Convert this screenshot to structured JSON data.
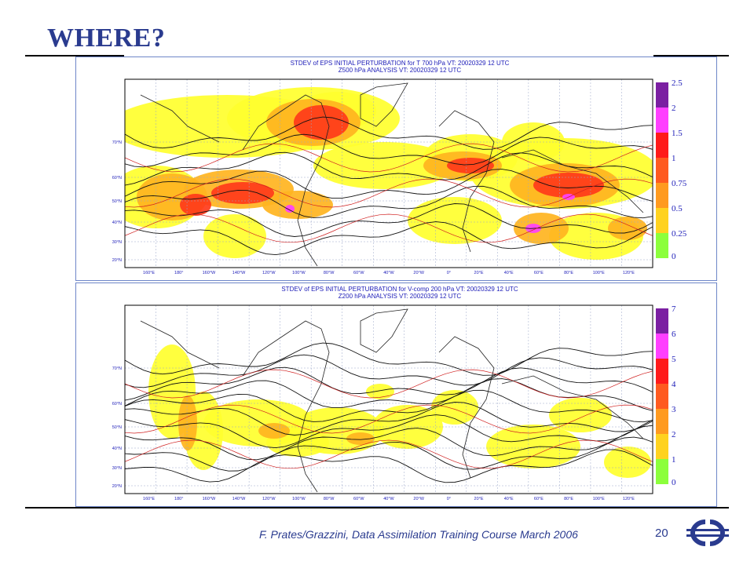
{
  "slide": {
    "title": "WHERE?",
    "footer": "F. Prates/Grazzini,  Data Assimilation Training Course March 2006",
    "page_number": "20",
    "logo_icon": "ecmwf-logo-icon",
    "accent_color": "#2a3b8f"
  },
  "panels": [
    {
      "title_line1": "STDEV of EPS INITIAL PERTURBATION for T 700 hPa VT: 20020329 12 UTC",
      "title_line2": "Z500 hPa ANALYSIS VT: 20020329 12 UTC",
      "legend_values": [
        "2.5",
        "2",
        "1.5",
        "1",
        "0.75",
        "0.5",
        "0.25",
        "0"
      ],
      "legend_colors": [
        "#7b1fa2",
        "#ff40ff",
        "#ff1a1a",
        "#ff5a1f",
        "#ff9a1f",
        "#ffd21f",
        "#ffff2e",
        "#8cff3c"
      ]
    },
    {
      "title_line1": "STDEV of EPS INITIAL PERTURBATION for V-comp 200 hPa VT: 20020329 12 UTC",
      "title_line2": "Z200 hPa ANALYSIS VT: 20020329 12 UTC",
      "legend_values": [
        "7",
        "6",
        "5",
        "4",
        "3",
        "2",
        "1",
        "0"
      ],
      "legend_colors": [
        "#7b1fa2",
        "#ff40ff",
        "#ff1a1a",
        "#ff5a1f",
        "#ff9a1f",
        "#ffd21f",
        "#ffff2e",
        "#8cff3c"
      ]
    }
  ],
  "axes": {
    "lat_labels": [
      "70°N",
      "60°N",
      "50°N",
      "40°N",
      "30°N",
      "20°N"
    ],
    "lon_labels": [
      "160°E",
      "180°",
      "160°W",
      "140°W",
      "120°W",
      "100°W",
      "80°W",
      "60°W",
      "40°W",
      "20°W",
      "0°",
      "20°E",
      "40°E",
      "60°E",
      "80°E",
      "100°E",
      "120°E"
    ]
  }
}
